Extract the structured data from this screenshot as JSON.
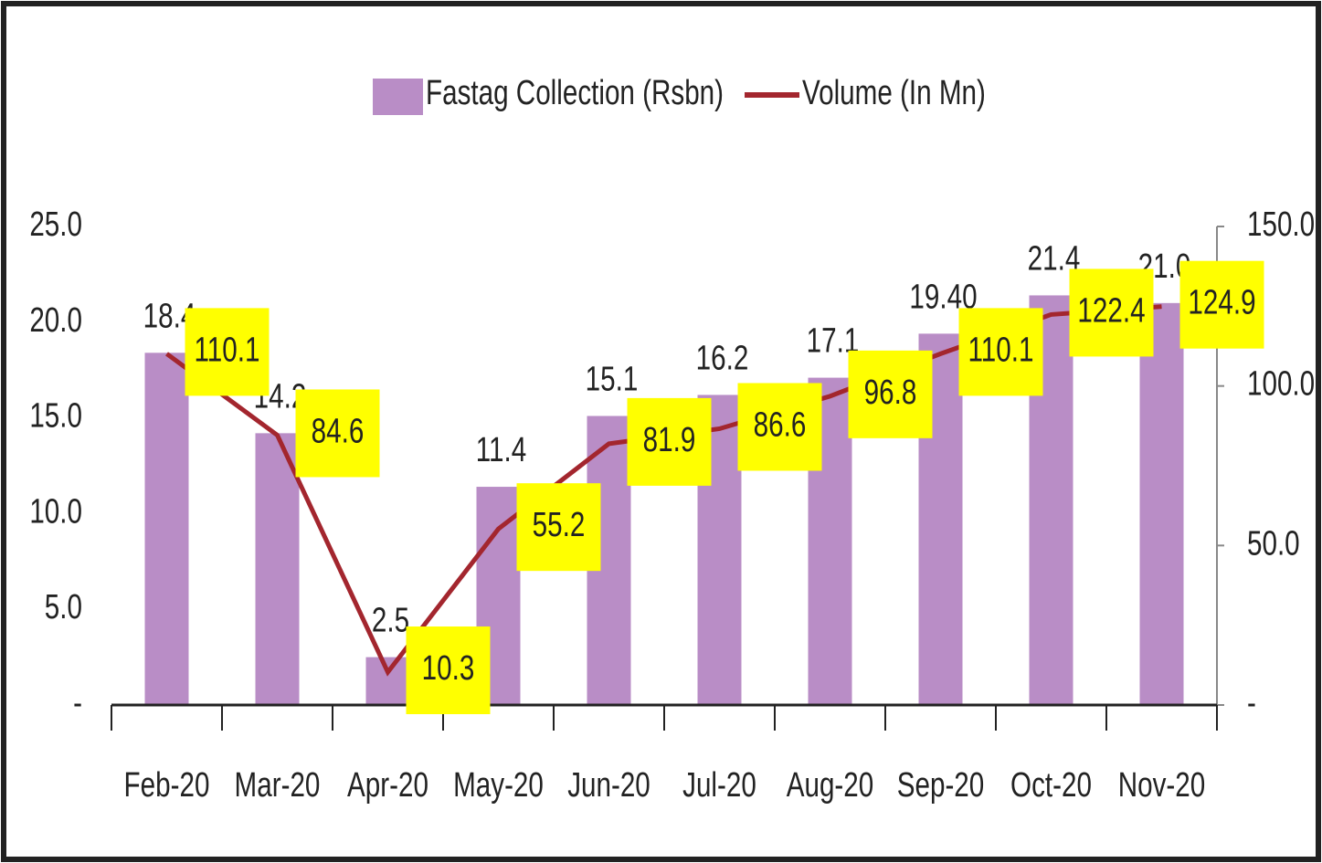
{
  "chart_data": {
    "type": "bar-line",
    "categories": [
      "Feb-20",
      "Mar-20",
      "Apr-20",
      "May-20",
      "Jun-20",
      "Jul-20",
      "Aug-20",
      "Sep-20",
      "Oct-20",
      "Nov-20"
    ],
    "series": [
      {
        "name": "Fastag Collection (Rsbn)",
        "type": "bar",
        "color": "#b98dc6",
        "axis": "y",
        "values": [
          18.4,
          14.2,
          2.5,
          11.4,
          15.1,
          16.2,
          17.1,
          19.4,
          21.4,
          21.0
        ],
        "value_labels": [
          "18.4",
          "14.2",
          "2.5",
          "11.4",
          "15.1",
          "16.2",
          "17.1",
          "19.40",
          "21.4",
          "21.0"
        ]
      },
      {
        "name": "Volume (In Mn)",
        "type": "line",
        "color": "#a3262e",
        "axis": "y2",
        "label_color": "#ffff00",
        "values": [
          110.1,
          84.6,
          10.3,
          55.2,
          81.9,
          86.6,
          96.8,
          110.1,
          122.4,
          124.9
        ]
      }
    ],
    "ylim": [
      0,
      25
    ],
    "yticks": [
      {
        "value": 0,
        "label": "-"
      },
      {
        "value": 5,
        "label": "5.0"
      },
      {
        "value": 10,
        "label": "10.0"
      },
      {
        "value": 15,
        "label": "15.0"
      },
      {
        "value": 20,
        "label": "20.0"
      },
      {
        "value": 25,
        "label": "25.0"
      }
    ],
    "y2lim": [
      0,
      150
    ],
    "y2ticks": [
      {
        "value": 0,
        "label": "-"
      },
      {
        "value": 50,
        "label": "50.0"
      },
      {
        "value": 100,
        "label": "100.0"
      },
      {
        "value": 150,
        "label": "150.0"
      }
    ],
    "legend": "top"
  }
}
